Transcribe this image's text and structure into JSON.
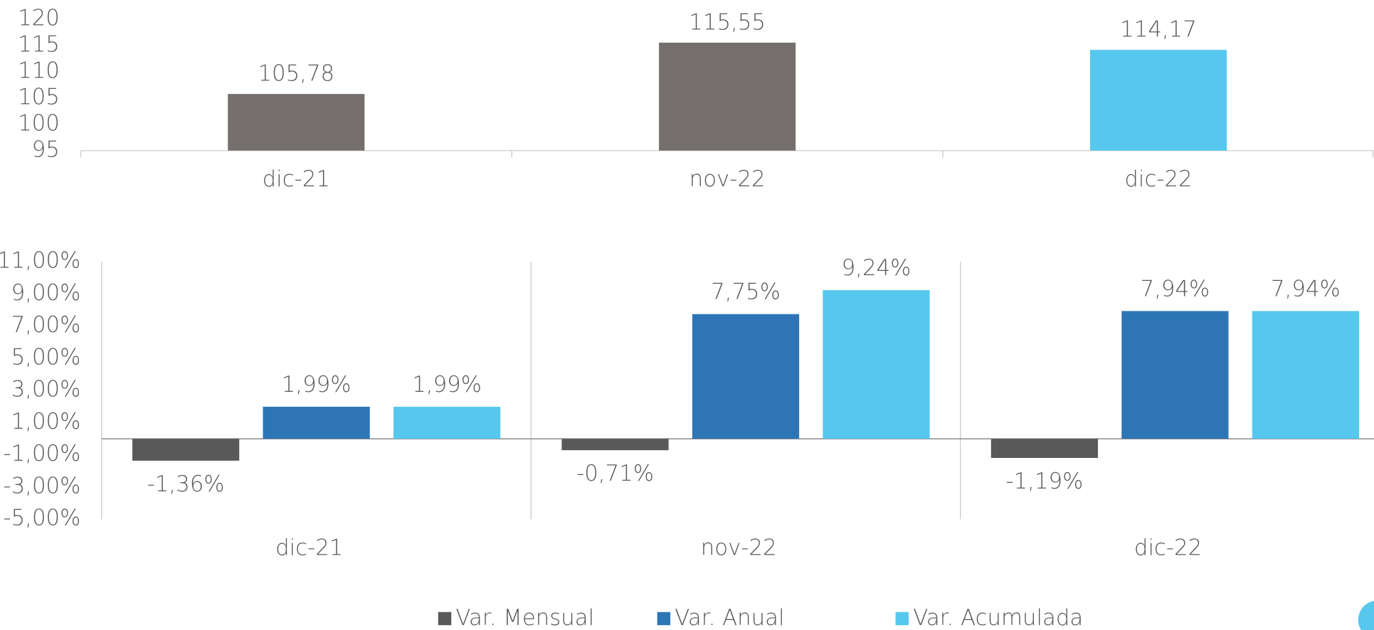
{
  "chart_data": [
    {
      "type": "bar",
      "categories": [
        "dic-21",
        "nov-22",
        "dic-22"
      ],
      "values": [
        105.78,
        115.55,
        114.17
      ],
      "value_labels": [
        "105,78",
        "115,55",
        "114,17"
      ],
      "colors": [
        "#75706e",
        "#75706e",
        "#56c8ee"
      ],
      "ylim": [
        95,
        120
      ],
      "yticks": [
        95,
        100,
        105,
        110,
        115,
        120
      ]
    },
    {
      "type": "grouped_bar",
      "categories": [
        "dic-21",
        "nov-22",
        "dic-22"
      ],
      "series": [
        {
          "name": "Var. Mensual",
          "color": "#595959",
          "values": [
            -1.36,
            -0.71,
            -1.19
          ],
          "value_labels": [
            "-1,36%",
            "-0,71%",
            "-1,19%"
          ]
        },
        {
          "name": "Var. Anual",
          "color": "#2e75b6",
          "values": [
            1.99,
            7.75,
            7.94
          ],
          "value_labels": [
            "1,99%",
            "7,75%",
            "7,94%"
          ]
        },
        {
          "name": "Var. Acumulada",
          "color": "#56c8ee",
          "values": [
            1.99,
            9.24,
            7.94
          ],
          "value_labels": [
            "1,99%",
            "9,24%",
            "7,94%"
          ]
        }
      ],
      "ylim": [
        -5,
        11
      ],
      "yticks": [
        {
          "value": -5,
          "label": "-5,00%"
        },
        {
          "value": -3,
          "label": "-3,00%"
        },
        {
          "value": -1,
          "label": "-1,00%"
        },
        {
          "value": 1,
          "label": "1,00%"
        },
        {
          "value": 3,
          "label": "3,00%"
        },
        {
          "value": 5,
          "label": "5,00%"
        },
        {
          "value": 7,
          "label": "7,00%"
        },
        {
          "value": 9,
          "label": "9,00%"
        },
        {
          "value": 11,
          "label": "11,00%"
        }
      ],
      "legend": "bottom"
    }
  ]
}
